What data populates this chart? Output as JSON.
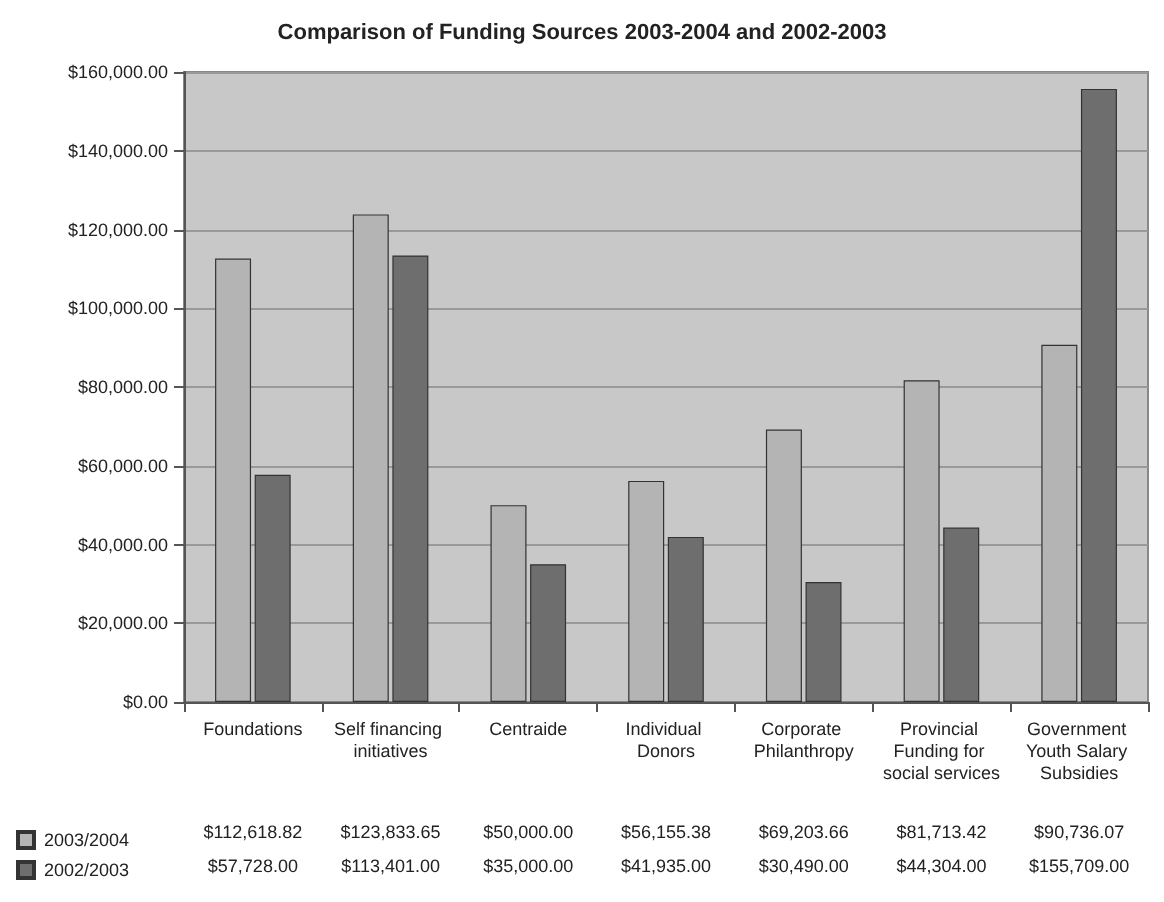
{
  "chart_data": {
    "type": "bar",
    "title": "Comparison of Funding Sources 2003-2004 and 2002-2003",
    "categories": [
      "Foundations",
      "Self financing initiatives",
      "Centraide",
      "Individual Donors",
      "Corporate Philanthropy",
      "Provincial Funding for social services",
      "Government Youth Salary Subsidies"
    ],
    "series": [
      {
        "name": "2003/2004",
        "color": "#b4b4b4",
        "values": [
          112618.82,
          123833.65,
          50000,
          56155.38,
          69203.66,
          81713.42,
          90736.07
        ],
        "value_labels": [
          "$112,618.82",
          "$123,833.65",
          "$50,000.00",
          "$56,155.38",
          "$69,203.66",
          "$81,713.42",
          "$90,736.07"
        ]
      },
      {
        "name": "2002/2003",
        "color": "#6e6e6e",
        "values": [
          57728,
          113401,
          35000,
          41935,
          30490,
          44304,
          155709
        ],
        "value_labels": [
          "$57,728.00",
          "$113,401.00",
          "$35,000.00",
          "$41,935.00",
          "$30,490.00",
          "$44,304.00",
          "$155,709.00"
        ]
      }
    ],
    "ylim": [
      0,
      160000
    ],
    "yticks": [
      {
        "value": 0,
        "label": "$0.00"
      },
      {
        "value": 20000,
        "label": "$20,000.00"
      },
      {
        "value": 40000,
        "label": "$40,000.00"
      },
      {
        "value": 60000,
        "label": "$60,000.00"
      },
      {
        "value": 80000,
        "label": "$80,000.00"
      },
      {
        "value": 100000,
        "label": "$100,000.00"
      },
      {
        "value": 120000,
        "label": "$120,000.00"
      },
      {
        "value": 140000,
        "label": "$140,000.00"
      },
      {
        "value": 160000,
        "label": "$160,000.00"
      }
    ],
    "grid": "y",
    "legend": "bottom left"
  }
}
